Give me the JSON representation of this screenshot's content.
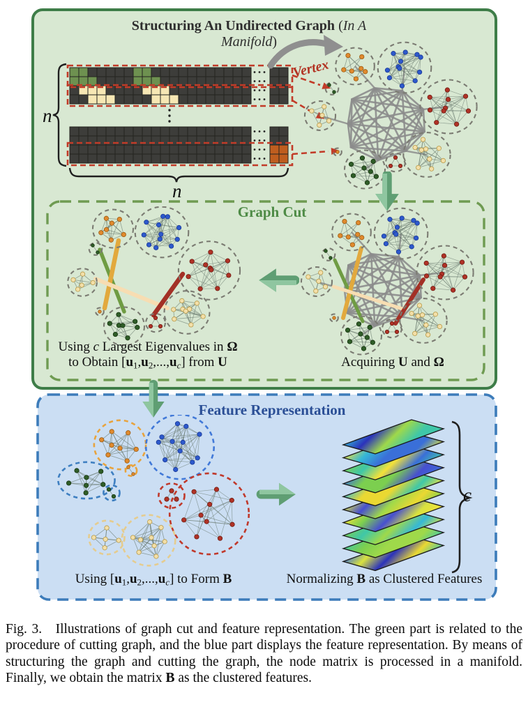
{
  "figure": {
    "top_panel": {
      "title_parts": [
        {
          "t": "Structuring An Undirected Graph",
          "s": "b"
        },
        {
          "t": " ("
        },
        {
          "t": "In A Manifold",
          "s": "i"
        },
        {
          "t": ")"
        }
      ],
      "vertex_label": "Vertex",
      "matrix_dim_label": "n"
    },
    "graph_cut": {
      "title": "Graph Cut",
      "left_caption_line1": [
        {
          "t": "Using "
        },
        {
          "t": "c",
          "s": "i"
        },
        {
          "t": " Largest Eigenvalues in "
        },
        {
          "t": "Ω",
          "s": "b"
        }
      ],
      "left_caption_line2": [
        {
          "t": "to Obtain ["
        },
        {
          "t": "u",
          "s": "b"
        },
        {
          "t": "1",
          "s": "sub"
        },
        {
          "t": ","
        },
        {
          "t": "u",
          "s": "b"
        },
        {
          "t": "2",
          "s": "sub"
        },
        {
          "t": ",...,"
        },
        {
          "t": "u",
          "s": "b"
        },
        {
          "t": "c",
          "s": "subi"
        },
        {
          "t": "] from "
        },
        {
          "t": "U",
          "s": "b"
        }
      ],
      "right_caption": [
        {
          "t": "Acquiring "
        },
        {
          "t": "U",
          "s": "b"
        },
        {
          "t": " and "
        },
        {
          "t": "Ω",
          "s": "b"
        }
      ]
    },
    "feature": {
      "title": "Feature Representation",
      "left_caption": [
        {
          "t": "Using ["
        },
        {
          "t": "u",
          "s": "b"
        },
        {
          "t": "1",
          "s": "sub"
        },
        {
          "t": ","
        },
        {
          "t": "u",
          "s": "b"
        },
        {
          "t": "2",
          "s": "sub"
        },
        {
          "t": ",...,"
        },
        {
          "t": "u",
          "s": "b"
        },
        {
          "t": "c",
          "s": "subi"
        },
        {
          "t": "] to Form "
        },
        {
          "t": "B",
          "s": "b"
        }
      ],
      "right_caption": [
        {
          "t": "Normalizing "
        },
        {
          "t": "B",
          "s": "b"
        },
        {
          "t": " as Clustered Features"
        }
      ],
      "stack_count_label": "c"
    }
  },
  "caption": {
    "segments": [
      {
        "t": "Fig. 3.  Illustrations of graph cut and feature representation. The green part is related to the procedure of cutting graph, and the blue part displays the feature representation. By means of structuring the graph and cutting the graph, the node matrix is processed in a manifold. Finally, we obtain the matrix "
      },
      {
        "t": "B",
        "s": "b"
      },
      {
        "t": " as the clustered features."
      }
    ]
  },
  "colors": {
    "panel_green_bg": "#d8e8d2",
    "panel_green_border": "#3e7d48",
    "graph_cut_border": "#6f9b52",
    "graph_cut_title": "#4e8b46",
    "panel_blue_bg": "#cbdef3",
    "panel_blue_border": "#3d7cba",
    "feature_title": "#2b4f96",
    "vertex_label": "#b23222",
    "matrix_highlight": "#c23b28",
    "matrix_cell_dark": "#3d3d3a",
    "matrix_cell_green": "#6e9150",
    "matrix_cell_cream": "#f6e7b4",
    "matrix_cell_orange": "#bf5e1f",
    "matrix_grid_line": "#24241f",
    "node_orange": "#e08a2e",
    "node_blue": "#2d59cc",
    "node_red": "#b03226",
    "node_cream": "#f3dfa8",
    "node_green": "#2f5d28",
    "cluster_ring_gray": "#7b7b72",
    "hub_edge": "#8c8c8c",
    "cluster_edge": "#66766a",
    "cut_green": "#6f9c43",
    "cut_yellow": "#e2a93d",
    "cut_cream": "#f7ddb2",
    "cut_red": "#a33026",
    "arrow_green_dark": "#5f9e73",
    "arrow_green_light": "#8fc6a0",
    "gray_arrow": "#8f8f8f",
    "heatmap_palette": [
      "#f5e138",
      "#ead832",
      "#d9e23f",
      "#7ccf4f",
      "#3fc7a8",
      "#35b8d6",
      "#3a6fd8",
      "#2b32bb",
      "#474fd0",
      "#9fd94a"
    ]
  }
}
